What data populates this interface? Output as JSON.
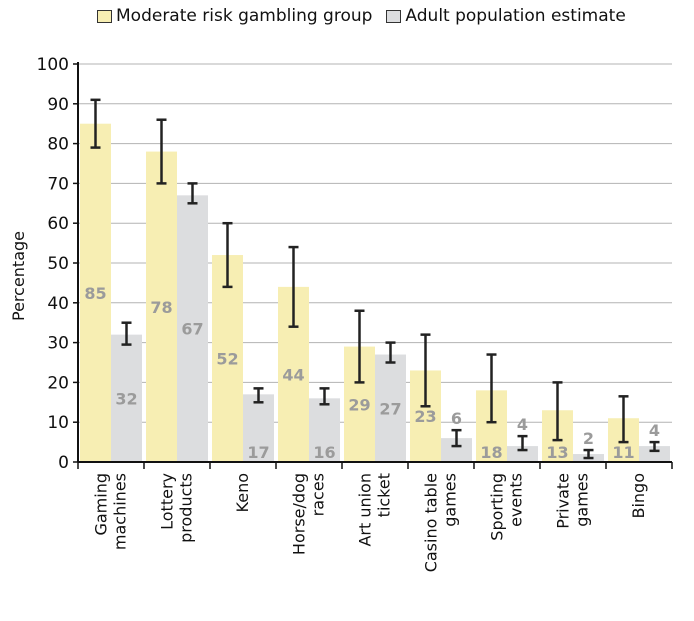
{
  "chart_data": {
    "type": "bar",
    "ylabel": "Percentage",
    "ylim": [
      0,
      100
    ],
    "yticks": [
      0,
      10,
      20,
      30,
      40,
      50,
      60,
      70,
      80,
      90,
      100
    ],
    "grid": true,
    "legend_position": "top",
    "categories": [
      [
        "Gaming",
        "machines"
      ],
      [
        "Lottery",
        "products"
      ],
      [
        "Keno"
      ],
      [
        "Horse/dog",
        "races"
      ],
      [
        "Art union",
        "ticket"
      ],
      [
        "Casino table",
        "games"
      ],
      [
        "Sporting",
        "events"
      ],
      [
        "Private",
        "games"
      ],
      [
        "Bingo"
      ]
    ],
    "series": [
      {
        "name": "Moderate risk gambling group",
        "color": "#f7eeb3",
        "values": [
          85,
          78,
          52,
          44,
          29,
          23,
          18,
          13,
          11
        ],
        "labels": [
          "85",
          "78",
          "52",
          "44",
          "29",
          "23",
          "18",
          "13",
          "11"
        ],
        "error_low": [
          79,
          70,
          44,
          34,
          20,
          14,
          10,
          5.5,
          5
        ],
        "error_high": [
          91,
          86,
          60,
          54,
          38,
          32,
          27,
          20,
          16.5
        ]
      },
      {
        "name": "Adult population estimate",
        "color": "#dcdddf",
        "values": [
          32,
          67,
          17,
          16,
          27,
          6,
          4,
          2,
          4
        ],
        "labels": [
          "32",
          "67",
          "17",
          "16",
          "27",
          "6",
          "4",
          "2",
          "4"
        ],
        "error_low": [
          29.5,
          65,
          15,
          14.5,
          25,
          4,
          3,
          1,
          2.8
        ],
        "error_high": [
          35,
          70,
          18.5,
          18.5,
          30,
          8,
          6.5,
          3,
          5
        ]
      }
    ]
  }
}
